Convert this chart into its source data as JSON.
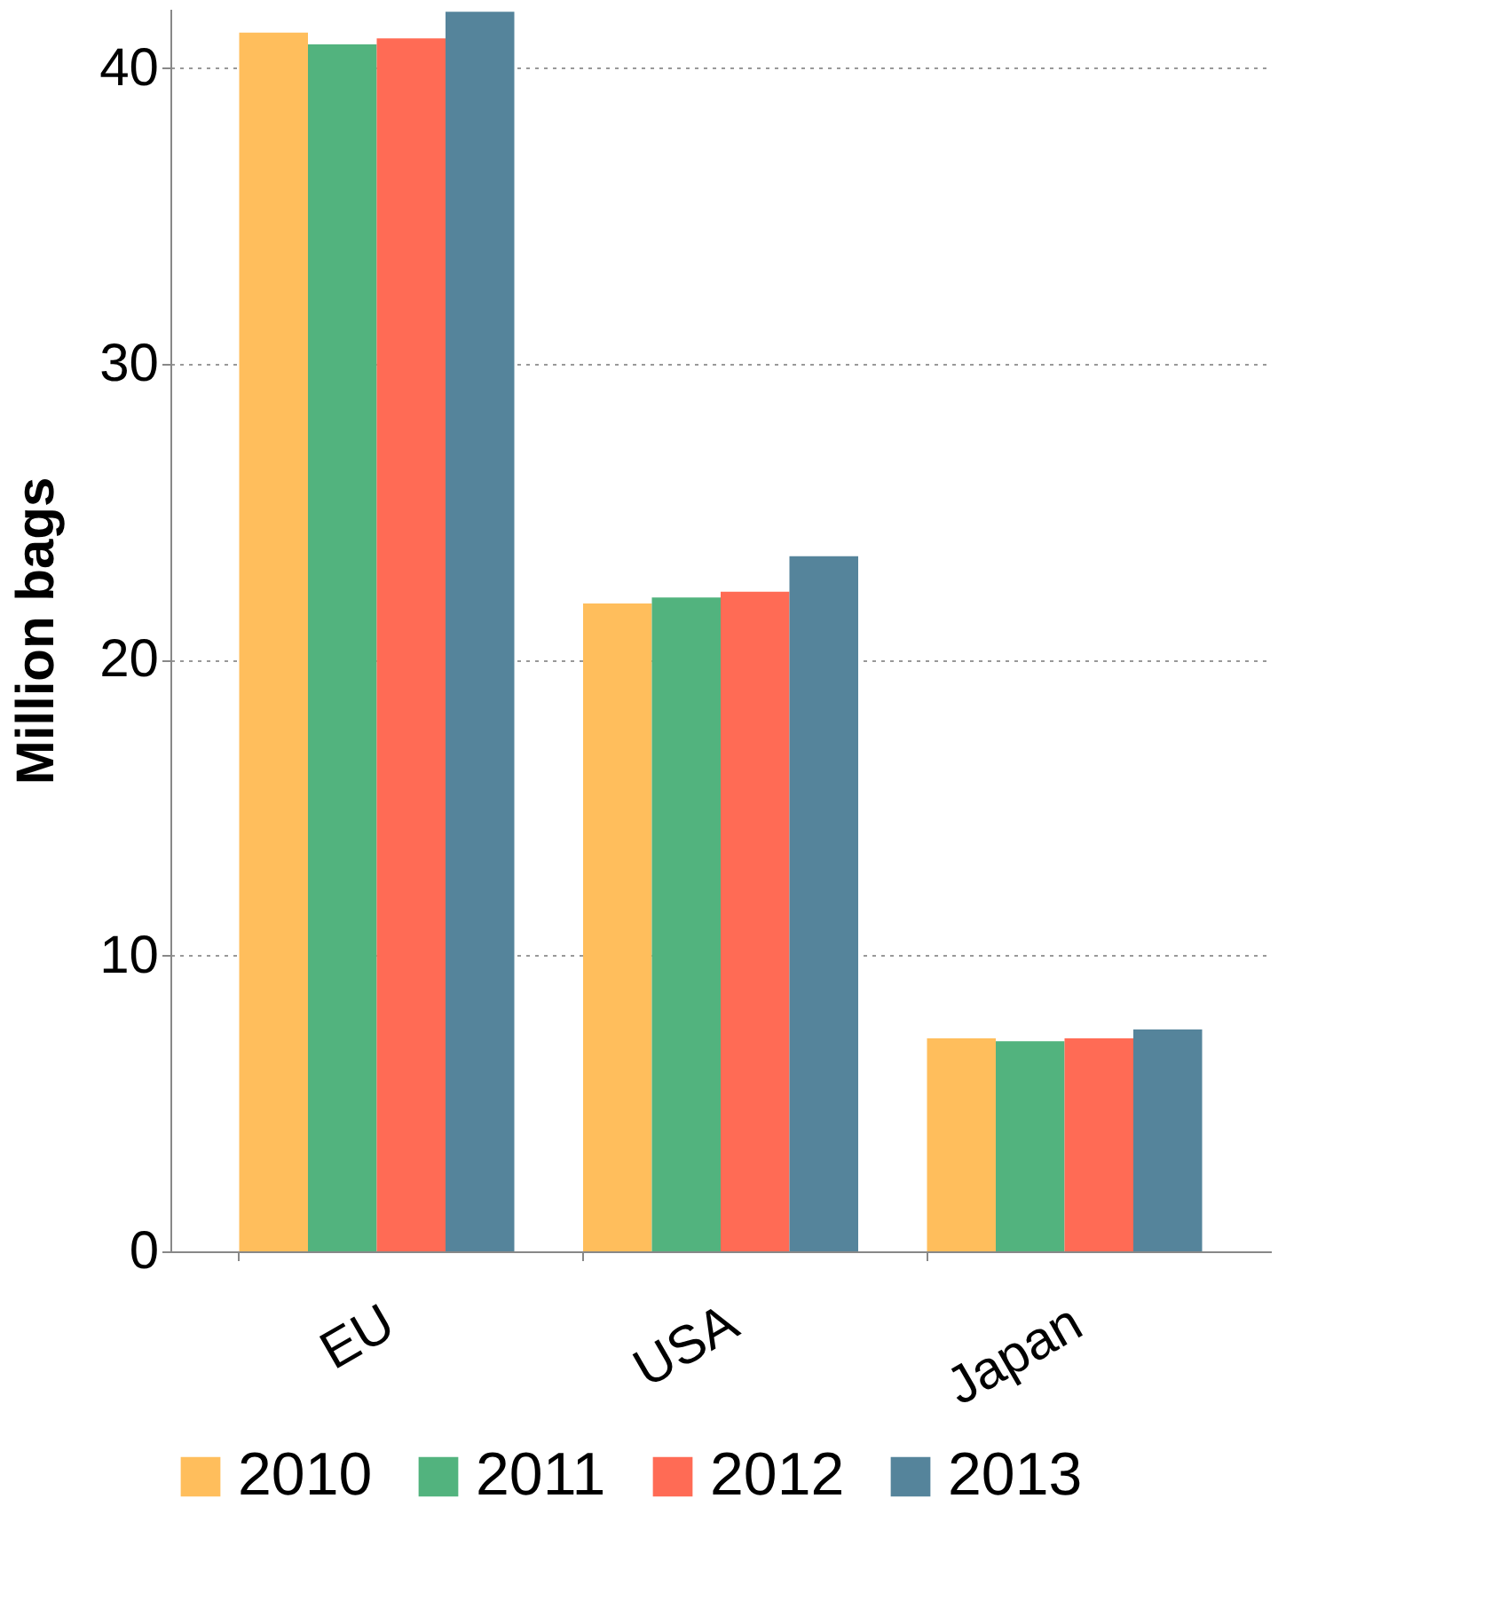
{
  "chart_data": {
    "type": "bar",
    "ylabel": "Million bags",
    "categories": [
      "EU",
      "USA",
      "Japan"
    ],
    "series": [
      {
        "name": "2010",
        "color": "#ffbe5c",
        "values": [
          41.2,
          21.9,
          7.2
        ]
      },
      {
        "name": "2011",
        "color": "#52b37e",
        "values": [
          40.8,
          22.1,
          7.1
        ]
      },
      {
        "name": "2012",
        "color": "#ff6b55",
        "values": [
          41.0,
          22.3,
          7.2
        ]
      },
      {
        "name": "2013",
        "color": "#55849b",
        "values": [
          41.9,
          23.5,
          7.5
        ]
      }
    ],
    "ylim": [
      0,
      42
    ],
    "yticks": [
      0,
      10,
      20,
      30,
      40
    ],
    "grid": "y",
    "legend": "bottom"
  }
}
